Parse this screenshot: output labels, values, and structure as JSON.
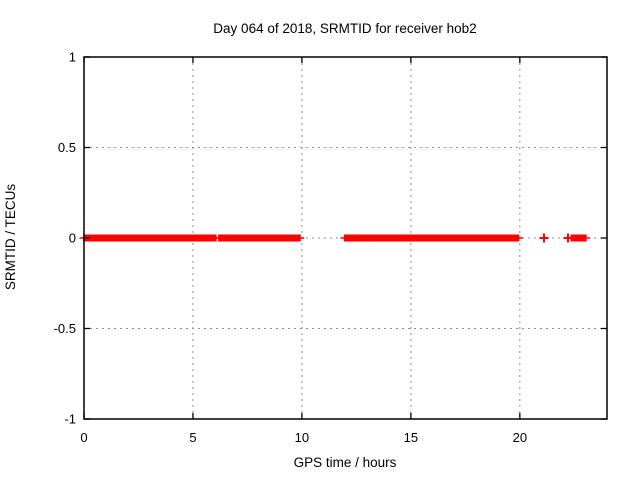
{
  "chart_data": {
    "type": "scatter",
    "title": "Day 064 of 2018, SRMTID for receiver hob2",
    "xlabel": "GPS time / hours",
    "ylabel": "SRMTID / TECUs",
    "xlim": [
      0,
      24
    ],
    "ylim": [
      -1,
      1
    ],
    "xticks": [
      0,
      5,
      10,
      15,
      20
    ],
    "xtick_labels": [
      "0",
      "5",
      "10",
      "15",
      "20"
    ],
    "yticks": [
      1,
      0.5,
      0,
      -0.5,
      -1
    ],
    "ytick_labels": [
      "1",
      "0.5",
      "0",
      "-0.5",
      "-1"
    ],
    "grid": "dashed, at interior ticks on both axes",
    "legend": "none",
    "marker": "plus",
    "marker_color": "#ff0000",
    "grid_color": "#909090",
    "axis_color": "#000000",
    "text_color": "#000000",
    "series_y": 0,
    "segments": [
      [
        0,
        6.04
      ],
      [
        6.2,
        9.9
      ],
      [
        11.97,
        19.93
      ],
      [
        22.37,
        23.02
      ]
    ],
    "points": [
      [
        21.11,
        0
      ],
      [
        22.21,
        0
      ]
    ]
  }
}
